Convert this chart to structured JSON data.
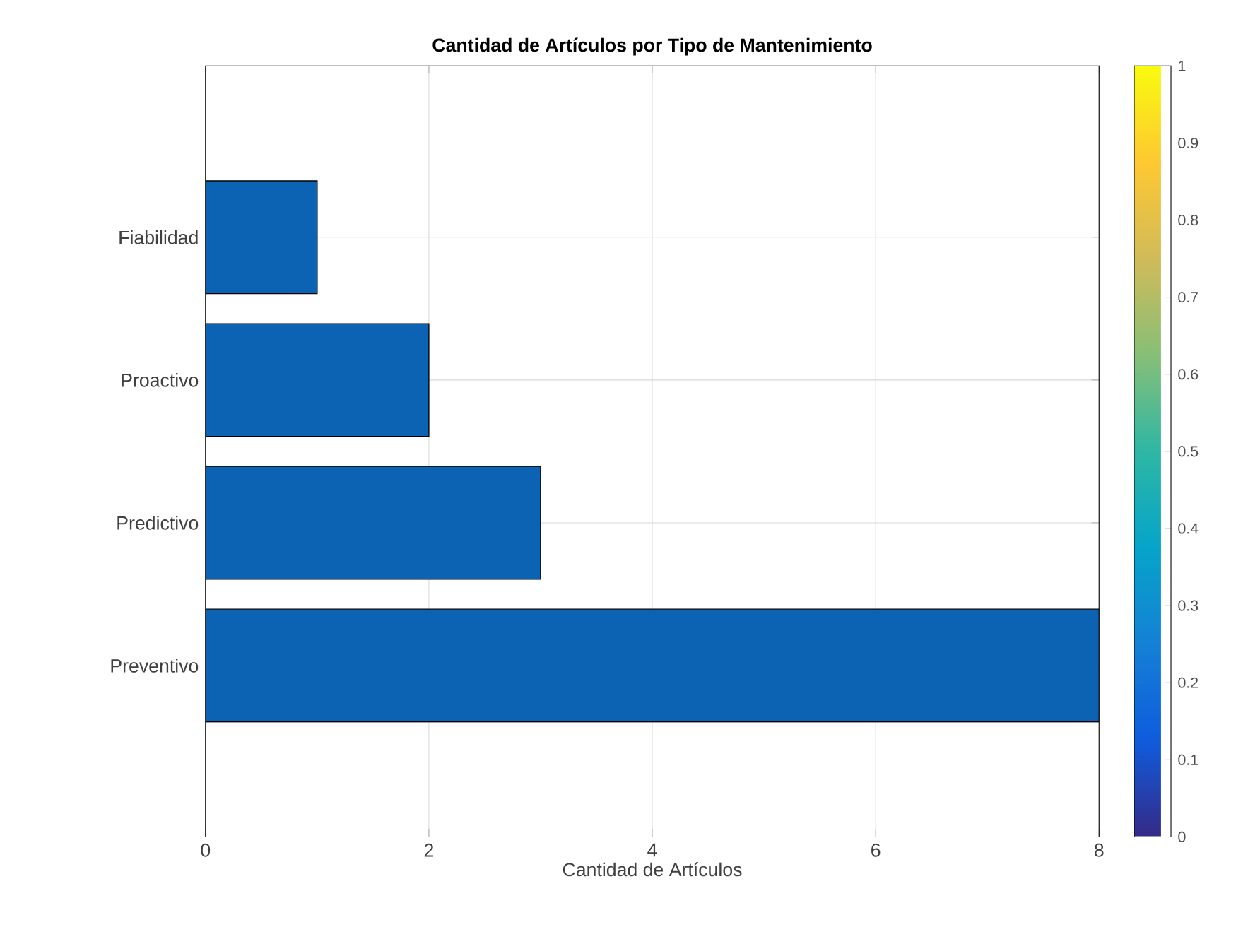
{
  "chart_data": {
    "type": "bar",
    "orientation": "horizontal",
    "title": "Cantidad de Artículos por Tipo de Mantenimiento",
    "xlabel": "Cantidad de Artículos",
    "categories": [
      "Fiabilidad",
      "Proactivo",
      "Predictivo",
      "Preventivo"
    ],
    "values": [
      1,
      2,
      3,
      8
    ],
    "color": "#0c63b4",
    "xlim": [
      0,
      8
    ],
    "xticks": [
      0,
      2,
      4,
      6,
      8
    ],
    "grid": true,
    "clim": [
      0,
      1
    ],
    "cticks": [
      0,
      0.1,
      0.2,
      0.3,
      0.4,
      0.5,
      0.6,
      0.7,
      0.8,
      0.9,
      1
    ]
  }
}
